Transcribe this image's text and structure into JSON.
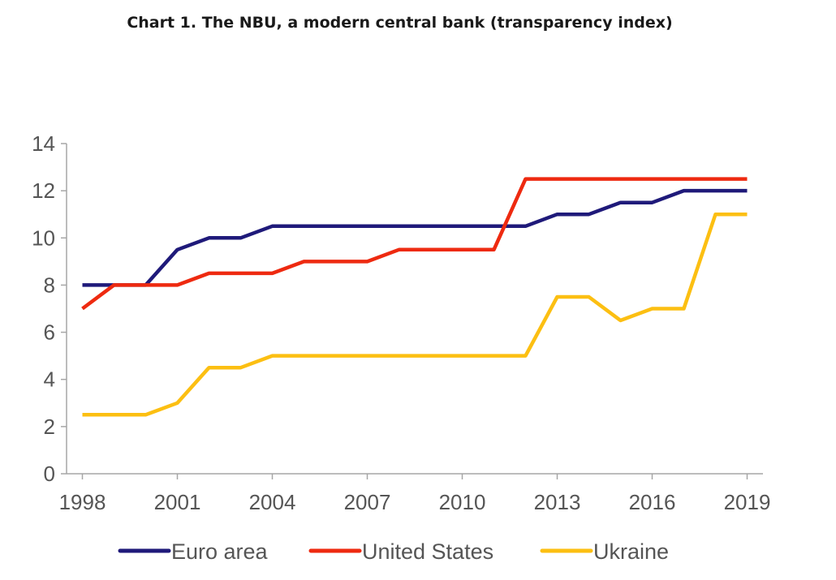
{
  "chart_data": {
    "type": "line",
    "title": "Chart 1. The NBU, a modern central bank (transparency index)",
    "xlabel": "",
    "ylabel": "",
    "x": [
      1998,
      1999,
      2000,
      2001,
      2002,
      2003,
      2004,
      2005,
      2006,
      2007,
      2008,
      2009,
      2010,
      2011,
      2012,
      2013,
      2014,
      2015,
      2016,
      2017,
      2018,
      2019
    ],
    "x_tick_labels": [
      "1998",
      "2001",
      "2004",
      "2007",
      "2010",
      "2013",
      "2016",
      "2019"
    ],
    "y_tick_labels": [
      "0",
      "2",
      "4",
      "6",
      "8",
      "10",
      "12",
      "14"
    ],
    "ylim": [
      0,
      14
    ],
    "grid": false,
    "legend_position": "bottom",
    "series": [
      {
        "name": "Euro area",
        "color": "#1f1a7a",
        "values": [
          8,
          8,
          8,
          9.5,
          10,
          10,
          10.5,
          10.5,
          10.5,
          10.5,
          10.5,
          10.5,
          10.5,
          10.5,
          10.5,
          11,
          11,
          11.5,
          11.5,
          12,
          12,
          12
        ]
      },
      {
        "name": "United States",
        "color": "#ee2a10",
        "values": [
          7,
          8,
          8,
          8,
          8.5,
          8.5,
          8.5,
          9,
          9,
          9,
          9.5,
          9.5,
          9.5,
          9.5,
          12.5,
          12.5,
          12.5,
          12.5,
          12.5,
          12.5,
          12.5,
          12.5
        ]
      },
      {
        "name": "Ukraine",
        "color": "#fcbf12",
        "values": [
          2.5,
          2.5,
          2.5,
          3,
          4.5,
          4.5,
          5,
          5,
          5,
          5,
          5,
          5,
          5,
          5,
          5,
          7.5,
          7.5,
          6.5,
          7,
          7,
          11,
          11
        ]
      }
    ]
  }
}
